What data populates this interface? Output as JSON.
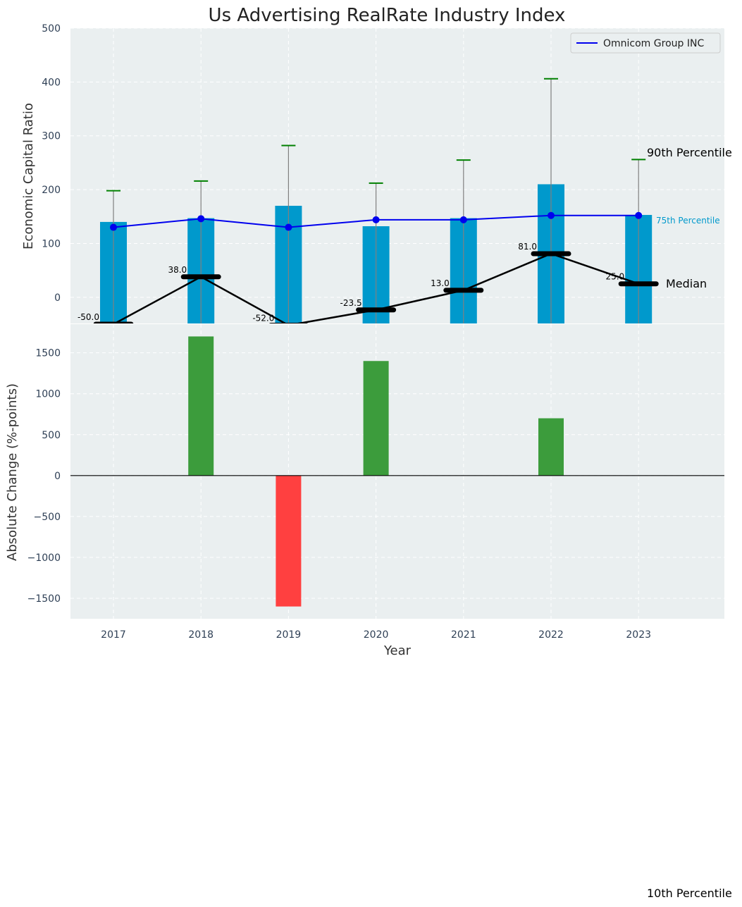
{
  "chart_data": [
    {
      "type": "bar",
      "title": "Us Advertising RealRate Industry Index",
      "ylabel": "Economic Capital Ratio",
      "ylim": [
        -50,
        500
      ],
      "yticks": [
        "500",
        "400",
        "300",
        "200",
        "100",
        "0"
      ],
      "grid": true,
      "legend_position": "top-right",
      "categories": [
        "2017",
        "2018",
        "2019",
        "2020",
        "2021",
        "2022",
        "2023"
      ],
      "percentile_75": [
        140,
        147,
        170,
        132,
        147,
        210,
        153
      ],
      "percentile_90": [
        198,
        216,
        282,
        212,
        255,
        406,
        256
      ],
      "median": [
        -50.0,
        38.0,
        -52.0,
        -23.5,
        13.0,
        81.0,
        25.0
      ],
      "median_labels": [
        "-50.0",
        "38.0",
        "-52.0",
        "-23.5",
        "13.0",
        "81.0",
        "25.0"
      ],
      "series": [
        {
          "name": "Omnicom Group INC",
          "values": [
            130,
            146,
            130,
            144,
            144,
            152,
            152
          ]
        }
      ],
      "annotations": {
        "p90": "90th Percentile",
        "p75": "75th Percentile",
        "median": "Median",
        "p10": "10th Percentile"
      },
      "colors": {
        "bar": "#0099cc",
        "series": "#0000ee",
        "median": "#000000",
        "whisker": "#008000",
        "p75_label": "#0099cc"
      }
    },
    {
      "type": "bar",
      "ylabel": "Absolute Change (%-points)",
      "xlabel": "Year",
      "ylim": [
        -1750,
        1850
      ],
      "yticks": [
        "1500",
        "1000",
        "500",
        "0",
        "−5​00",
        "−1000",
        "−1500"
      ],
      "grid": true,
      "categories": [
        "2017",
        "2018",
        "2019",
        "2020",
        "2021",
        "2022",
        "2023"
      ],
      "values": [
        0,
        1700,
        -1600,
        1400,
        0,
        700,
        0
      ],
      "colors": {
        "positive": "#3c9c3c",
        "negative": "#ff4040"
      }
    }
  ]
}
